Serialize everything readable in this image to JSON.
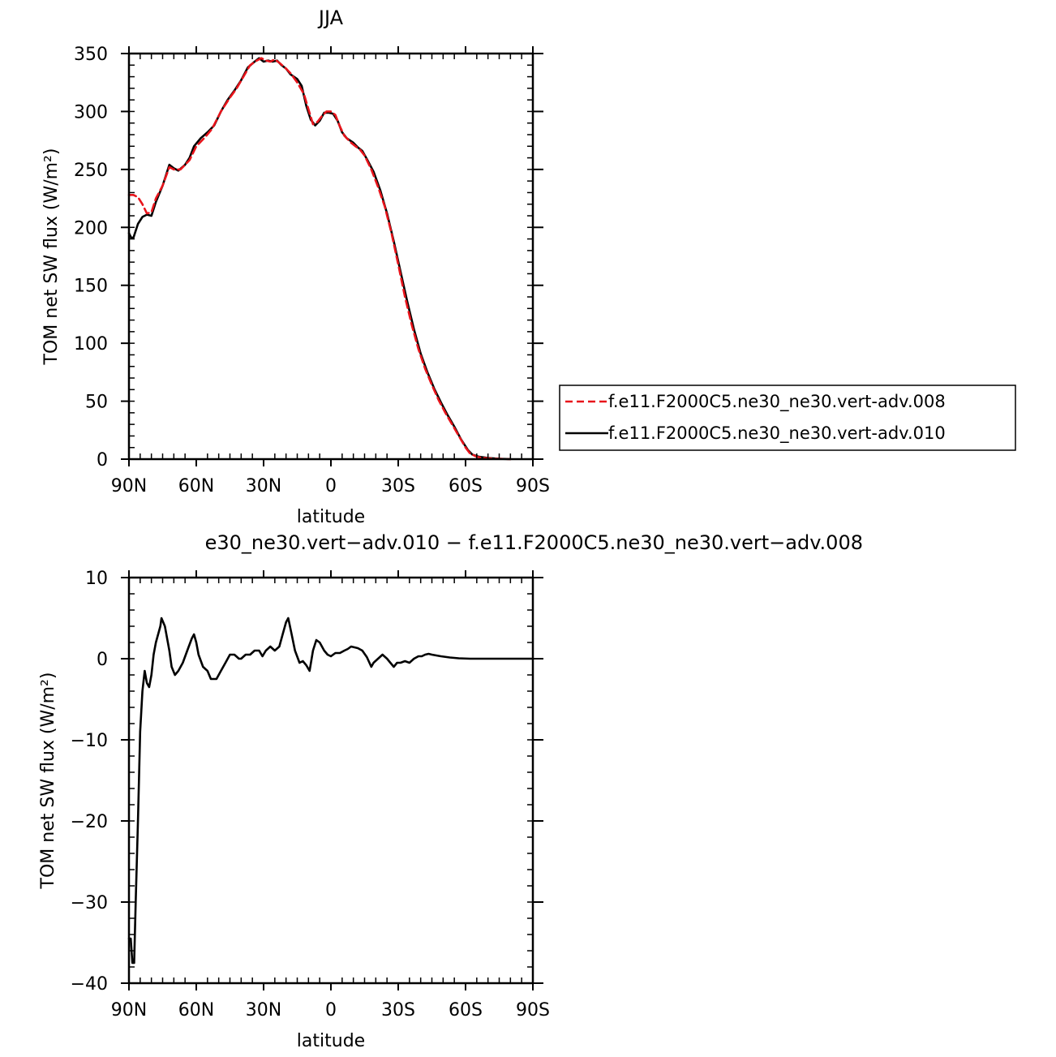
{
  "chart_data": [
    {
      "type": "line",
      "title": "JJA",
      "xlabel": "latitude",
      "ylabel": "TOM net SW flux (W/m²)",
      "xlim": [
        90,
        -90
      ],
      "ylim": [
        0,
        350
      ],
      "yticks": [
        0,
        50,
        100,
        150,
        200,
        250,
        300,
        350
      ],
      "xticks": [
        {
          "value": 90,
          "label": "90N"
        },
        {
          "value": 60,
          "label": "60N"
        },
        {
          "value": 30,
          "label": "30N"
        },
        {
          "value": 0,
          "label": "0"
        },
        {
          "value": -30,
          "label": "30S"
        },
        {
          "value": -60,
          "label": "60S"
        },
        {
          "value": -90,
          "label": "90S"
        }
      ],
      "legend_position": "right",
      "series": [
        {
          "name": "f.e11.F2000C5.ne30_ne30.vert-adv.008",
          "color": "#e8141b",
          "dash": "dashed",
          "points": [
            [
              90,
              228
            ],
            [
              88,
              228
            ],
            [
              86,
              226
            ],
            [
              84,
              220
            ],
            [
              82,
              212
            ],
            [
              80,
              213
            ],
            [
              78,
              225
            ],
            [
              75,
              236
            ],
            [
              72,
              252
            ],
            [
              70,
              250
            ],
            [
              67,
              250
            ],
            [
              63,
              258
            ],
            [
              60,
              270
            ],
            [
              56,
              278
            ],
            [
              53,
              285
            ],
            [
              49,
              300
            ],
            [
              45,
              312
            ],
            [
              42,
              320
            ],
            [
              39,
              330
            ],
            [
              36,
              340
            ],
            [
              33,
              344
            ],
            [
              31,
              346
            ],
            [
              29,
              344
            ],
            [
              27,
              343
            ],
            [
              25,
              345
            ],
            [
              23,
              342
            ],
            [
              20,
              337
            ],
            [
              18,
              333
            ],
            [
              15,
              325
            ],
            [
              12,
              315
            ],
            [
              10,
              302
            ],
            [
              8,
              289
            ],
            [
              6,
              291
            ],
            [
              4,
              296
            ],
            [
              2,
              300
            ],
            [
              0,
              300
            ],
            [
              -2,
              297
            ],
            [
              -4,
              287
            ],
            [
              -6,
              279
            ],
            [
              -9,
              273
            ],
            [
              -11,
              270
            ],
            [
              -13,
              267
            ],
            [
              -15,
              262
            ],
            [
              -18,
              250
            ],
            [
              -21,
              235
            ],
            [
              -24,
              218
            ],
            [
              -27,
              195
            ],
            [
              -30,
              168
            ],
            [
              -33,
              140
            ],
            [
              -36,
              116
            ],
            [
              -39,
              95
            ],
            [
              -42,
              78
            ],
            [
              -45,
              64
            ],
            [
              -48,
              51
            ],
            [
              -51,
              40
            ],
            [
              -54,
              30
            ],
            [
              -57,
              20
            ],
            [
              -60,
              10
            ],
            [
              -62,
              5
            ],
            [
              -65,
              2
            ],
            [
              -68,
              1
            ],
            [
              -72,
              0.5
            ],
            [
              -76,
              0.2
            ],
            [
              -80,
              0
            ]
          ]
        },
        {
          "name": "f.e11.F2000C5.ne30_ne30.vert-adv.010",
          "color": "#000000",
          "dash": "solid",
          "points": [
            [
              90,
              195
            ],
            [
              89,
              191
            ],
            [
              88,
              191
            ],
            [
              86,
              203
            ],
            [
              84,
              209
            ],
            [
              82,
              211
            ],
            [
              80,
              210
            ],
            [
              78,
              222
            ],
            [
              75,
              236
            ],
            [
              72,
              254
            ],
            [
              70,
              251
            ],
            [
              68,
              249
            ],
            [
              65,
              254
            ],
            [
              63,
              260
            ],
            [
              61,
              270
            ],
            [
              58,
              277
            ],
            [
              55,
              282
            ],
            [
              52,
              288
            ],
            [
              49,
              300
            ],
            [
              46,
              310
            ],
            [
              43,
              318
            ],
            [
              40,
              327
            ],
            [
              37,
              338
            ],
            [
              34,
              343
            ],
            [
              32,
              346
            ],
            [
              30,
              343
            ],
            [
              28,
              344
            ],
            [
              26,
              343
            ],
            [
              24,
              344
            ],
            [
              22,
              340
            ],
            [
              20,
              337
            ],
            [
              18,
              332
            ],
            [
              15,
              328
            ],
            [
              13,
              322
            ],
            [
              11,
              305
            ],
            [
              9,
              293
            ],
            [
              7,
              288
            ],
            [
              5,
              292
            ],
            [
              3,
              299
            ],
            [
              1,
              299
            ],
            [
              -1,
              298
            ],
            [
              -3,
              292
            ],
            [
              -5,
              282
            ],
            [
              -7,
              277
            ],
            [
              -10,
              273
            ],
            [
              -12,
              269
            ],
            [
              -14,
              266
            ],
            [
              -16,
              259
            ],
            [
              -19,
              248
            ],
            [
              -22,
              232
            ],
            [
              -25,
              212
            ],
            [
              -28,
              188
            ],
            [
              -31,
              162
            ],
            [
              -34,
              136
            ],
            [
              -37,
              112
            ],
            [
              -40,
              91
            ],
            [
              -43,
              75
            ],
            [
              -46,
              61
            ],
            [
              -49,
              49
            ],
            [
              -52,
              38
            ],
            [
              -55,
              28
            ],
            [
              -58,
              17
            ],
            [
              -61,
              8
            ],
            [
              -63,
              4
            ],
            [
              -66,
              2
            ],
            [
              -70,
              1
            ],
            [
              -75,
              0.3
            ],
            [
              -80,
              0
            ]
          ]
        }
      ]
    },
    {
      "type": "line",
      "title": "e30_ne30.vert−adv.010 − f.e11.F2000C5.ne30_ne30.vert−adv.008",
      "xlabel": "latitude",
      "ylabel": "TOM net SW flux (W/m²)",
      "xlim": [
        90,
        -90
      ],
      "ylim": [
        -40,
        10
      ],
      "yticks": [
        -40,
        -30,
        -20,
        -10,
        0,
        10
      ],
      "ytick_labels": [
        "−40",
        "−30",
        "−20",
        "−10",
        "0",
        "10"
      ],
      "xticks": [
        {
          "value": 90,
          "label": "90N"
        },
        {
          "value": 60,
          "label": "60N"
        },
        {
          "value": 30,
          "label": "30N"
        },
        {
          "value": 0,
          "label": "0"
        },
        {
          "value": -30,
          "label": "30S"
        },
        {
          "value": -60,
          "label": "60S"
        },
        {
          "value": -90,
          "label": "90S"
        }
      ],
      "series": [
        {
          "color": "#000000",
          "dash": "solid",
          "points": [
            [
              90,
              -34.5
            ],
            [
              89.2,
              -34.5
            ],
            [
              88.5,
              -37.5
            ],
            [
              87.7,
              -37.5
            ],
            [
              87,
              -30
            ],
            [
              86,
              -20
            ],
            [
              85,
              -9
            ],
            [
              84,
              -4
            ],
            [
              83,
              -1.5
            ],
            [
              82,
              -3
            ],
            [
              81,
              -3.5
            ],
            [
              80,
              -2
            ],
            [
              79,
              0.5
            ],
            [
              78,
              2
            ],
            [
              76,
              4
            ],
            [
              75.5,
              5
            ],
            [
              74,
              4
            ],
            [
              72,
              1
            ],
            [
              71,
              -1
            ],
            [
              69.5,
              -2
            ],
            [
              68,
              -1.5
            ],
            [
              66,
              -0.5
            ],
            [
              64,
              1
            ],
            [
              62,
              2.5
            ],
            [
              61,
              3
            ],
            [
              60,
              2
            ],
            [
              59,
              0.5
            ],
            [
              57,
              -1
            ],
            [
              55,
              -1.5
            ],
            [
              53.5,
              -2.5
            ],
            [
              51,
              -2.5
            ],
            [
              49,
              -1.5
            ],
            [
              47,
              -0.5
            ],
            [
              45,
              0.5
            ],
            [
              43,
              0.5
            ],
            [
              41,
              0
            ],
            [
              40,
              0
            ],
            [
              38,
              0.5
            ],
            [
              36,
              0.5
            ],
            [
              34,
              1
            ],
            [
              32,
              1
            ],
            [
              30.5,
              0.3
            ],
            [
              29,
              1
            ],
            [
              27,
              1.5
            ],
            [
              25,
              1
            ],
            [
              23,
              1.5
            ],
            [
              21.5,
              3
            ],
            [
              20,
              4.5
            ],
            [
              19,
              5
            ],
            [
              17.5,
              3
            ],
            [
              16,
              1
            ],
            [
              14,
              -0.5
            ],
            [
              12.5,
              -0.3
            ],
            [
              11,
              -0.8
            ],
            [
              9.5,
              -1.5
            ],
            [
              8,
              1
            ],
            [
              6.5,
              2.3
            ],
            [
              5,
              2
            ],
            [
              3,
              1
            ],
            [
              1.5,
              0.5
            ],
            [
              0,
              0.3
            ],
            [
              -2,
              0.7
            ],
            [
              -4,
              0.7
            ],
            [
              -6,
              1
            ],
            [
              -7.5,
              1.2
            ],
            [
              -9,
              1.5
            ],
            [
              -10.5,
              1.4
            ],
            [
              -12,
              1.3
            ],
            [
              -14,
              1
            ],
            [
              -16,
              0.2
            ],
            [
              -18,
              -1
            ],
            [
              -19,
              -0.5
            ],
            [
              -21,
              0
            ],
            [
              -23,
              0.5
            ],
            [
              -25,
              0
            ],
            [
              -26.5,
              -0.5
            ],
            [
              -28,
              -1
            ],
            [
              -29.5,
              -0.5
            ],
            [
              -31,
              -0.5
            ],
            [
              -33,
              -0.3
            ],
            [
              -35,
              -0.5
            ],
            [
              -37,
              0
            ],
            [
              -39,
              0.3
            ],
            [
              -40.5,
              0.3
            ],
            [
              -42,
              0.5
            ],
            [
              -43.5,
              0.6
            ],
            [
              -45,
              0.5
            ],
            [
              -47,
              0.4
            ],
            [
              -49,
              0.3
            ],
            [
              -53,
              0.15
            ],
            [
              -57,
              0.05
            ],
            [
              -62,
              0
            ],
            [
              -70,
              0
            ],
            [
              -90,
              0
            ]
          ]
        }
      ]
    }
  ]
}
